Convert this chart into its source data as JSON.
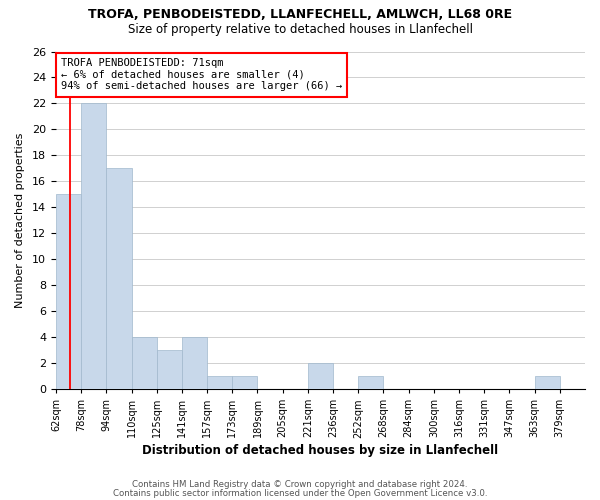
{
  "title": "TROFA, PENBODEISTEDD, LLANFECHELL, AMLWCH, LL68 0RE",
  "subtitle": "Size of property relative to detached houses in Llanfechell",
  "xlabel": "Distribution of detached houses by size in Llanfechell",
  "ylabel": "Number of detached properties",
  "footer_line1": "Contains HM Land Registry data © Crown copyright and database right 2024.",
  "footer_line2": "Contains public sector information licensed under the Open Government Licence v3.0.",
  "bar_labels": [
    "62sqm",
    "78sqm",
    "94sqm",
    "110sqm",
    "125sqm",
    "141sqm",
    "157sqm",
    "173sqm",
    "189sqm",
    "205sqm",
    "221sqm",
    "236sqm",
    "252sqm",
    "268sqm",
    "284sqm",
    "300sqm",
    "316sqm",
    "331sqm",
    "347sqm",
    "363sqm",
    "379sqm"
  ],
  "bar_values": [
    15,
    22,
    17,
    4,
    3,
    4,
    1,
    1,
    0,
    0,
    2,
    0,
    1,
    0,
    0,
    0,
    0,
    0,
    0,
    1,
    0
  ],
  "bar_color": "#c8d8ea",
  "bin_width": 16,
  "red_line_x": 71,
  "annotation_text_line1": "TROFA PENBODEISTEDD: 71sqm",
  "annotation_text_line2": "← 6% of detached houses are smaller (4)",
  "annotation_text_line3": "94% of semi-detached houses are larger (66) →",
  "ylim": [
    0,
    26
  ],
  "background_color": "#ffffff",
  "grid_color": "#d0d0d0",
  "title_fontsize": 9,
  "subtitle_fontsize": 8.5
}
